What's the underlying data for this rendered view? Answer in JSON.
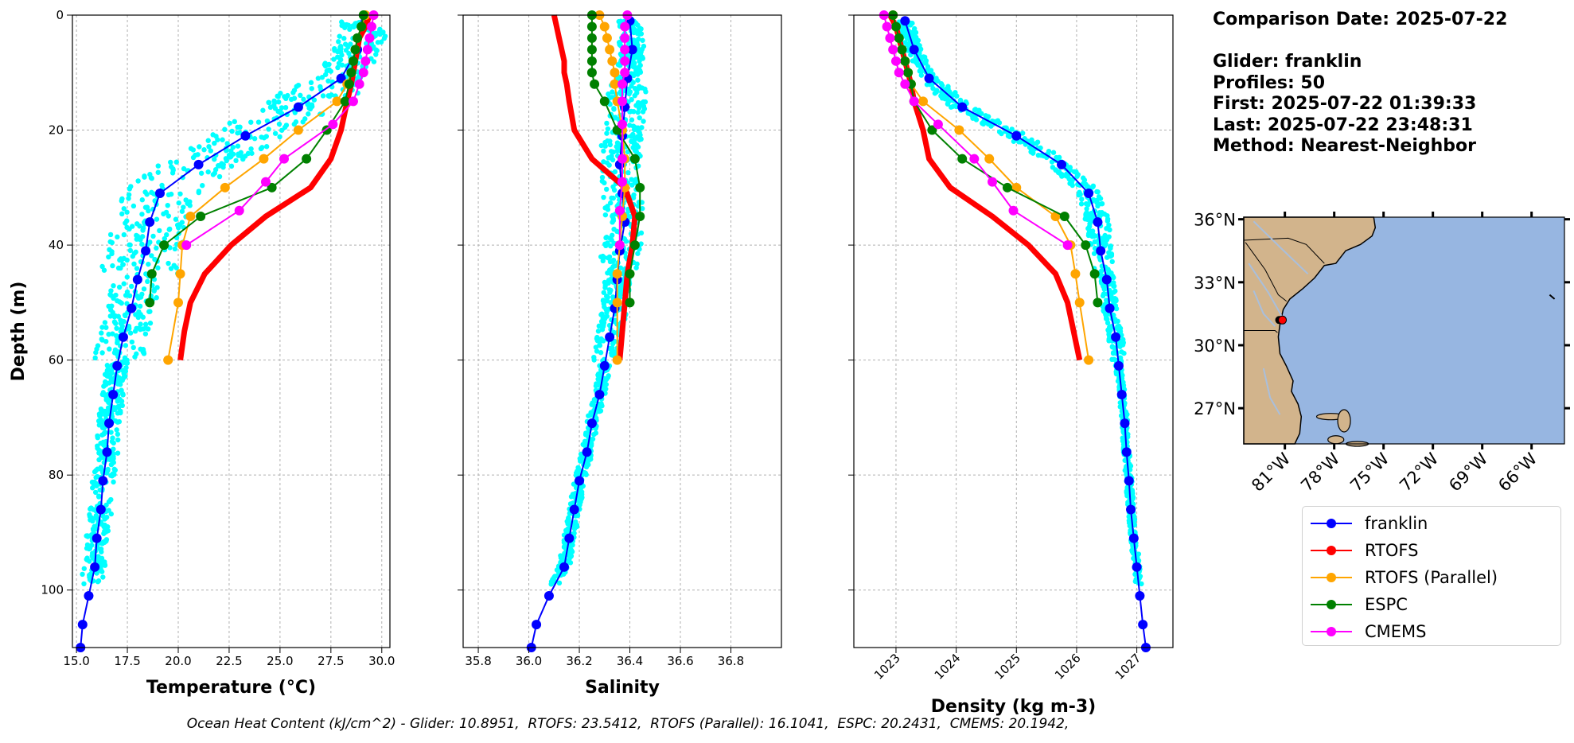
{
  "info": {
    "comparison_date": "Comparison Date: 2025-07-22",
    "glider": "Glider: franklin",
    "profiles": "Profiles: 50",
    "first": "First: 2025-07-22 01:39:33",
    "last": "Last: 2025-07-22 23:48:31",
    "method": "Method: Nearest-Neighbor"
  },
  "footer": "Ocean Heat Content (kJ/cm^2) - Glider: 10.8951,  RTOFS: 23.5412,  RTOFS (Parallel): 16.1041,  ESPC: 20.2431,  CMEMS: 20.1942,",
  "legend": [
    {
      "label": "franklin",
      "color": "#0000ff"
    },
    {
      "label": "RTOFS",
      "color": "#ff0000"
    },
    {
      "label": "RTOFS (Parallel)",
      "color": "#ffa500"
    },
    {
      "label": "ESPC",
      "color": "#008000"
    },
    {
      "label": "CMEMS",
      "color": "#ff00ff"
    }
  ],
  "colors": {
    "glider_scatter": "#00ffff",
    "ocean": "#97b6e1",
    "land": "#d2b48c",
    "grid": "#b0b0b0"
  },
  "chart_data": [
    {
      "type": "line",
      "title": "",
      "xlabel": "Temperature (°C)",
      "ylabel": "Depth (m)",
      "xlim": [
        14.8,
        30.4
      ],
      "ylim": [
        110,
        0
      ],
      "xticks": [
        "15.0",
        "17.5",
        "20.0",
        "22.5",
        "25.0",
        "27.5",
        "30.0"
      ],
      "yticks": [
        "0",
        "20",
        "40",
        "60",
        "80",
        "100"
      ],
      "grid": true,
      "series": [
        {
          "name": "franklin",
          "depth": [
            1,
            6,
            11,
            16,
            21,
            26,
            31,
            36,
            41,
            46,
            51,
            56,
            61,
            66,
            71,
            76,
            81,
            86,
            91,
            96,
            101,
            106,
            110
          ],
          "values": [
            29.2,
            28.8,
            28.0,
            25.9,
            23.3,
            21.0,
            19.1,
            18.6,
            18.4,
            18.0,
            17.7,
            17.3,
            17.0,
            16.8,
            16.6,
            16.5,
            16.3,
            16.2,
            16.0,
            15.9,
            15.6,
            15.3,
            15.2
          ]
        },
        {
          "name": "RTOFS",
          "depth": [
            0,
            2,
            4,
            6,
            8,
            10,
            12,
            15,
            20,
            25,
            30,
            35,
            40,
            45,
            50,
            55,
            60
          ],
          "values": [
            29.4,
            29.2,
            28.9,
            28.8,
            28.7,
            28.6,
            28.5,
            28.3,
            28.0,
            27.5,
            26.5,
            24.3,
            22.6,
            21.3,
            20.6,
            20.3,
            20.1
          ]
        },
        {
          "name": "RTOFS (Parallel)",
          "depth": [
            0,
            2,
            4,
            6,
            8,
            10,
            12,
            15,
            20,
            25,
            30,
            35,
            40,
            45,
            50,
            60
          ],
          "values": [
            29.2,
            29.0,
            28.8,
            28.7,
            28.6,
            28.5,
            28.3,
            27.8,
            25.9,
            24.2,
            22.3,
            20.6,
            20.2,
            20.1,
            20.0,
            19.5
          ]
        },
        {
          "name": "ESPC",
          "depth": [
            0,
            2,
            4,
            6,
            8,
            10,
            12,
            15,
            20,
            25,
            30,
            35,
            40,
            45,
            50
          ],
          "values": [
            29.1,
            29.0,
            28.8,
            28.7,
            28.6,
            28.5,
            28.4,
            28.2,
            27.3,
            26.3,
            24.6,
            21.1,
            19.3,
            18.7,
            18.6
          ]
        },
        {
          "name": "CMEMS",
          "depth": [
            0,
            2,
            4,
            6,
            8,
            10,
            12,
            15,
            19,
            25,
            29,
            34,
            40
          ],
          "values": [
            29.6,
            29.5,
            29.4,
            29.3,
            29.2,
            29.1,
            28.9,
            28.6,
            27.6,
            25.2,
            24.3,
            23.0,
            20.4
          ]
        }
      ]
    },
    {
      "type": "line",
      "title": "",
      "xlabel": "Salinity",
      "xlim": [
        35.74,
        37.0
      ],
      "ylim": [
        110,
        0
      ],
      "xticks": [
        "35.8",
        "36.0",
        "36.2",
        "36.4",
        "36.6",
        "36.8"
      ],
      "grid": true,
      "series": [
        {
          "name": "franklin",
          "depth": [
            1,
            6,
            11,
            16,
            21,
            26,
            31,
            36,
            41,
            46,
            51,
            56,
            61,
            66,
            71,
            76,
            81,
            86,
            91,
            96,
            101,
            106,
            110
          ],
          "values": [
            36.4,
            36.41,
            36.39,
            36.38,
            36.37,
            36.36,
            36.37,
            36.38,
            36.36,
            36.35,
            36.34,
            36.32,
            36.3,
            36.28,
            36.25,
            36.23,
            36.2,
            36.18,
            36.16,
            36.14,
            36.08,
            36.03,
            36.01
          ]
        },
        {
          "name": "RTOFS",
          "depth": [
            0,
            2,
            4,
            6,
            8,
            10,
            12,
            15,
            20,
            25,
            30,
            35,
            40,
            45,
            50,
            55,
            60
          ],
          "values": [
            36.1,
            36.11,
            36.12,
            36.13,
            36.14,
            36.14,
            36.15,
            36.16,
            36.18,
            36.25,
            36.38,
            36.42,
            36.41,
            36.39,
            36.38,
            36.37,
            36.36
          ]
        },
        {
          "name": "RTOFS (Parallel)",
          "depth": [
            0,
            2,
            4,
            6,
            8,
            10,
            12,
            15,
            20,
            25,
            30,
            35,
            40,
            45,
            50,
            60
          ],
          "values": [
            36.28,
            36.3,
            36.31,
            36.32,
            36.33,
            36.34,
            36.34,
            36.35,
            36.37,
            36.38,
            36.38,
            36.37,
            36.36,
            36.35,
            36.35,
            36.35
          ]
        },
        {
          "name": "ESPC",
          "depth": [
            0,
            2,
            4,
            6,
            8,
            10,
            12,
            15,
            20,
            25,
            30,
            35,
            40,
            45,
            50
          ],
          "values": [
            36.25,
            36.25,
            36.25,
            36.25,
            36.25,
            36.25,
            36.26,
            36.3,
            36.35,
            36.42,
            36.44,
            36.44,
            36.42,
            36.4,
            36.4
          ]
        },
        {
          "name": "CMEMS",
          "depth": [
            0,
            2,
            4,
            6,
            8,
            10,
            12,
            15,
            19,
            25,
            29,
            34,
            40
          ],
          "values": [
            36.39,
            36.38,
            36.38,
            36.38,
            36.38,
            36.38,
            36.37,
            36.37,
            36.37,
            36.37,
            36.37,
            36.36,
            36.36
          ]
        }
      ]
    },
    {
      "type": "line",
      "title": "",
      "xlabel": "Density (kg m-3)",
      "xlim": [
        1022.3,
        1027.6
      ],
      "ylim": [
        110,
        0
      ],
      "xticks": [
        "1023",
        "1024",
        "1025",
        "1026",
        "1027"
      ],
      "grid": true,
      "series": [
        {
          "name": "franklin",
          "depth": [
            1,
            6,
            11,
            16,
            21,
            26,
            31,
            36,
            41,
            46,
            51,
            56,
            61,
            66,
            71,
            76,
            81,
            86,
            91,
            96,
            101,
            106,
            110
          ],
          "values": [
            1023.15,
            1023.3,
            1023.55,
            1024.1,
            1025.0,
            1025.75,
            1026.2,
            1026.35,
            1026.4,
            1026.5,
            1026.55,
            1026.65,
            1026.7,
            1026.75,
            1026.8,
            1026.83,
            1026.87,
            1026.9,
            1026.95,
            1027.0,
            1027.05,
            1027.1,
            1027.15
          ]
        },
        {
          "name": "RTOFS",
          "depth": [
            0,
            2,
            4,
            6,
            8,
            10,
            12,
            15,
            20,
            25,
            30,
            35,
            40,
            45,
            50,
            55,
            60
          ],
          "values": [
            1022.9,
            1023.0,
            1023.05,
            1023.1,
            1023.15,
            1023.2,
            1023.25,
            1023.3,
            1023.45,
            1023.55,
            1023.9,
            1024.6,
            1025.2,
            1025.65,
            1025.85,
            1025.95,
            1026.05
          ]
        },
        {
          "name": "RTOFS (Parallel)",
          "depth": [
            0,
            2,
            4,
            6,
            8,
            10,
            12,
            15,
            20,
            25,
            30,
            35,
            40,
            45,
            50,
            60
          ],
          "values": [
            1022.95,
            1023.0,
            1023.05,
            1023.1,
            1023.15,
            1023.2,
            1023.25,
            1023.45,
            1024.05,
            1024.55,
            1025.0,
            1025.65,
            1025.9,
            1025.98,
            1026.05,
            1026.2
          ]
        },
        {
          "name": "ESPC",
          "depth": [
            0,
            2,
            4,
            6,
            8,
            10,
            12,
            15,
            20,
            25,
            30,
            35,
            40,
            45,
            50
          ],
          "values": [
            1022.95,
            1023.0,
            1023.05,
            1023.1,
            1023.15,
            1023.2,
            1023.25,
            1023.3,
            1023.6,
            1024.1,
            1024.85,
            1025.8,
            1026.15,
            1026.3,
            1026.35
          ]
        },
        {
          "name": "CMEMS",
          "depth": [
            0,
            2,
            4,
            6,
            8,
            10,
            12,
            15,
            19,
            25,
            29,
            34,
            40
          ],
          "values": [
            1022.8,
            1022.85,
            1022.9,
            1022.95,
            1023.0,
            1023.05,
            1023.15,
            1023.3,
            1023.7,
            1024.3,
            1024.6,
            1024.95,
            1025.85
          ]
        }
      ]
    }
  ],
  "map": {
    "lat_labels": [
      "36°N",
      "33°N",
      "30°N",
      "27°N"
    ],
    "lon_labels": [
      "81°W",
      "78°W",
      "75°W",
      "72°W",
      "69°W",
      "66°W"
    ],
    "extent": {
      "lon": [
        -83.5,
        -64.0
      ],
      "lat": [
        25.3,
        36.1
      ]
    },
    "lat_ticks": [
      36,
      33,
      30,
      27
    ],
    "lon_ticks": [
      -81,
      -78,
      -75,
      -72,
      -69,
      -66
    ],
    "glider_position": {
      "lon": -81.2,
      "lat": 31.2
    }
  }
}
